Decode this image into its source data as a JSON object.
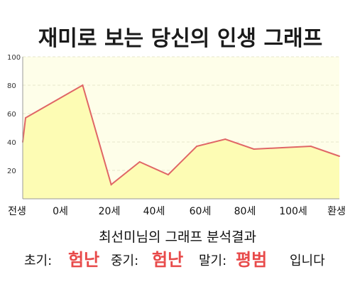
{
  "page": {
    "title": "재미로 보는 당신의 인생 그래프",
    "analysis_title": "최선미님의 그래프 분석결과",
    "phases": [
      {
        "label": "초기:",
        "value": "험난"
      },
      {
        "label": "중기:",
        "value": "험난"
      },
      {
        "label": "말기:",
        "value": "평범"
      }
    ],
    "closing": "입니다"
  },
  "chart_data": {
    "type": "area",
    "title": "재미로 보는 당신의 인생 그래프",
    "xlabel": "",
    "ylabel": "",
    "ylim": [
      0,
      100
    ],
    "yticks": [
      "20",
      "40",
      "60",
      "80",
      "100"
    ],
    "x_tick_labels": [
      "전생",
      "0세",
      "20세",
      "40세",
      "60세",
      "80세",
      "100세",
      "환생"
    ],
    "x": [
      -1,
      0,
      20,
      30,
      40,
      50,
      60,
      70,
      80,
      90,
      100,
      110
    ],
    "values": [
      40,
      57,
      80,
      10,
      26,
      17,
      37,
      42,
      35,
      36,
      37,
      30
    ],
    "grid": true,
    "colors": {
      "line": "#e06666",
      "fill": "#fdfcb4",
      "plot_bg": "#fefee9",
      "grid": "#e6e6cc",
      "axis": "#9a9a9a",
      "highlight": "#e84a4a"
    }
  }
}
